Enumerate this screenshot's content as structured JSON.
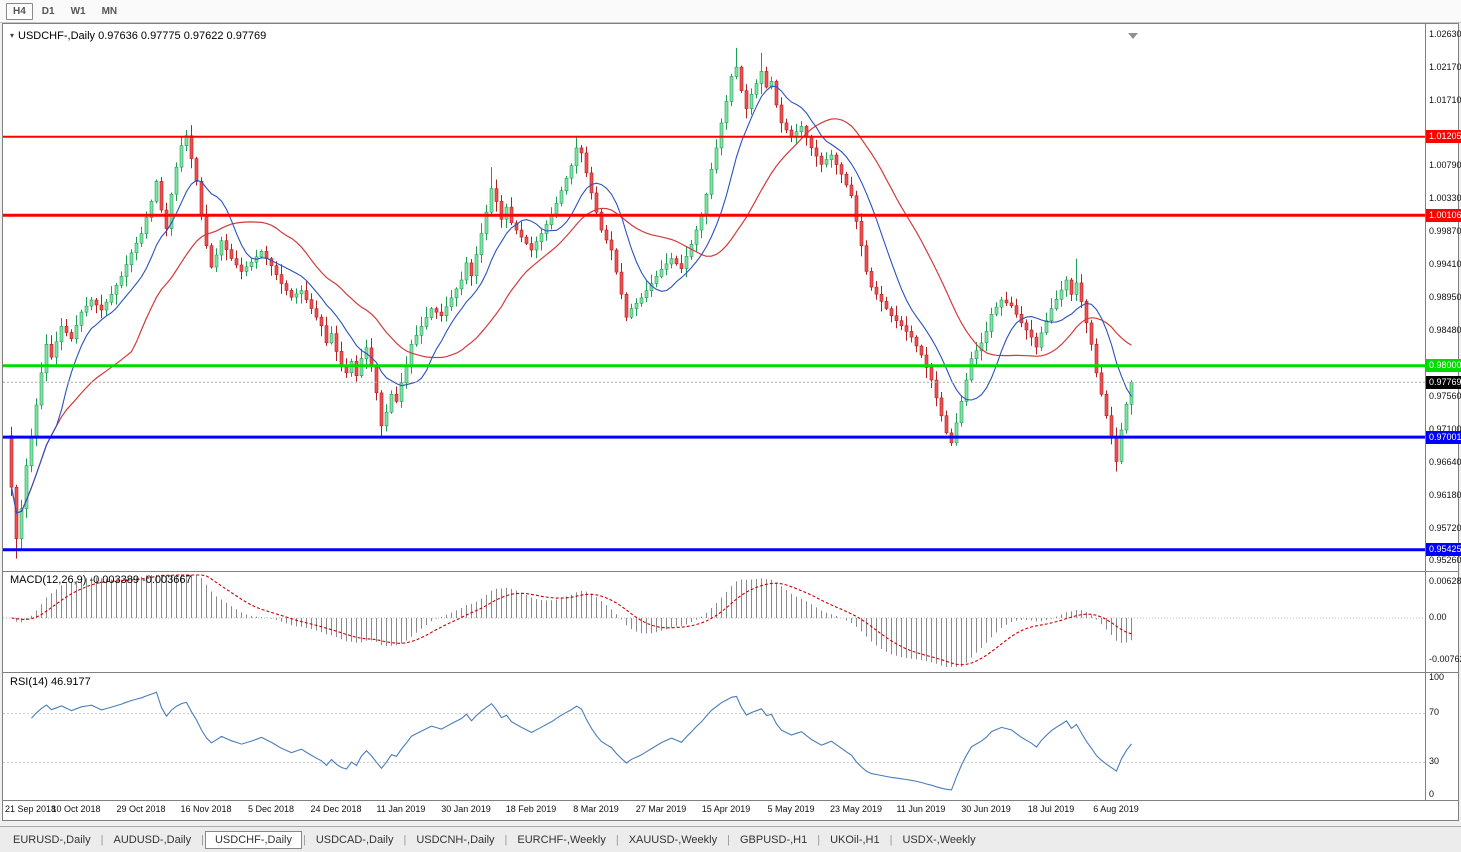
{
  "window": {
    "header": "USDCHF-,Daily 0.97636 0.97775 0.97622 0.97769",
    "collapse_icon": "▾"
  },
  "toolbar": {
    "buttons": [
      {
        "label": "H4",
        "active": true
      },
      {
        "label": "D1",
        "active": false
      },
      {
        "label": "W1",
        "active": false
      },
      {
        "label": "MN",
        "active": false
      }
    ]
  },
  "indicators": {
    "macd": {
      "label": "MACD(12,26,9) -0.003389 -0.003667",
      "axis": [
        "0.006286",
        "0.00",
        "-0.007620"
      ]
    },
    "rsi": {
      "label": "RSI(14) 46.9177",
      "axis": [
        "100",
        "70",
        "30",
        "0"
      ]
    }
  },
  "price_axis": {
    "ticks": [
      {
        "label": "1.02630",
        "value": 1.0263
      },
      {
        "label": "1.02170",
        "value": 1.0217
      },
      {
        "label": "1.01710",
        "value": 1.0171
      },
      {
        "label": "1.00790",
        "value": 1.0079
      },
      {
        "label": "1.00330",
        "value": 1.0033
      },
      {
        "label": "0.99870",
        "value": 0.9987
      },
      {
        "label": "0.99410",
        "value": 0.9941
      },
      {
        "label": "0.98950",
        "value": 0.9895
      },
      {
        "label": "0.98480",
        "value": 0.9848
      },
      {
        "label": "0.97560",
        "value": 0.9756
      },
      {
        "label": "0.97100",
        "value": 0.971
      },
      {
        "label": "0.96640",
        "value": 0.9664
      },
      {
        "label": "0.96180",
        "value": 0.9618
      },
      {
        "label": "0.95720",
        "value": 0.9572
      },
      {
        "label": "0.95260",
        "value": 0.9526
      }
    ]
  },
  "tabs": {
    "items": [
      {
        "label": "EURUSD-,Daily",
        "active": false
      },
      {
        "label": "AUDUSD-,Daily",
        "active": false
      },
      {
        "label": "USDCHF-,Daily",
        "active": true
      },
      {
        "label": "USDCAD-,Daily",
        "active": false
      },
      {
        "label": "USDCNH-,Daily",
        "active": false
      },
      {
        "label": "EURCHF-,Weekly",
        "active": false
      },
      {
        "label": "XAUUSD-,Weekly",
        "active": false
      },
      {
        "label": "GBPUSD-,H1",
        "active": false
      },
      {
        "label": "UKOil-,H1",
        "active": false
      },
      {
        "label": "USDX-,Weekly",
        "active": false
      }
    ]
  },
  "chart_data": {
    "type": "candlestick",
    "symbol": "USDCHF-",
    "timeframe": "Daily",
    "current": {
      "open": 0.97636,
      "high": 0.97775,
      "low": 0.97622,
      "close": 0.97769
    },
    "y_range": [
      0.9526,
      1.0263
    ],
    "y_tick_step": 0.0046,
    "candle_count": 225,
    "first_open": 0.9702,
    "close_anchors": [
      [
        0,
        0.963
      ],
      [
        1,
        0.9558
      ],
      [
        2,
        0.96
      ],
      [
        3,
        0.966
      ],
      [
        4,
        0.97
      ],
      [
        5,
        0.9745
      ],
      [
        6,
        0.979
      ],
      [
        7,
        0.983
      ],
      [
        8,
        0.9812
      ],
      [
        10,
        0.9855
      ],
      [
        12,
        0.9838
      ],
      [
        14,
        0.9875
      ],
      [
        16,
        0.9892
      ],
      [
        18,
        0.9878
      ],
      [
        20,
        0.99
      ],
      [
        22,
        0.9925
      ],
      [
        24,
        0.9958
      ],
      [
        26,
        0.9985
      ],
      [
        28,
        1.003
      ],
      [
        29,
        1.0058
      ],
      [
        30,
        1.0018
      ],
      [
        31,
        0.9992
      ],
      [
        32,
        1.004
      ],
      [
        33,
        1.0078
      ],
      [
        34,
        1.0108
      ],
      [
        35,
        1.0122
      ],
      [
        36,
        1.009
      ],
      [
        37,
        1.0058
      ],
      [
        38,
        1.0012
      ],
      [
        39,
        0.9968
      ],
      [
        40,
        0.9938
      ],
      [
        41,
        0.9955
      ],
      [
        42,
        0.9975
      ],
      [
        44,
        0.995
      ],
      [
        46,
        0.9932
      ],
      [
        48,
        0.9945
      ],
      [
        50,
        0.996
      ],
      [
        52,
        0.994
      ],
      [
        54,
        0.9915
      ],
      [
        56,
        0.9896
      ],
      [
        58,
        0.9905
      ],
      [
        60,
        0.988
      ],
      [
        62,
        0.9856
      ],
      [
        63,
        0.9832
      ],
      [
        64,
        0.9845
      ],
      [
        65,
        0.982
      ],
      [
        66,
        0.98
      ],
      [
        67,
        0.979
      ],
      [
        68,
        0.9806
      ],
      [
        69,
        0.9786
      ],
      [
        70,
        0.981
      ],
      [
        71,
        0.9825
      ],
      [
        72,
        0.98
      ],
      [
        73,
        0.9762
      ],
      [
        74,
        0.9716
      ],
      [
        75,
        0.9735
      ],
      [
        76,
        0.976
      ],
      [
        77,
        0.975
      ],
      [
        78,
        0.9776
      ],
      [
        79,
        0.98
      ],
      [
        80,
        0.983
      ],
      [
        82,
        0.9855
      ],
      [
        84,
        0.988
      ],
      [
        86,
        0.987
      ],
      [
        88,
        0.9895
      ],
      [
        90,
        0.992
      ],
      [
        91,
        0.9944
      ],
      [
        92,
        0.9926
      ],
      [
        94,
        0.9985
      ],
      [
        95,
        1.0015
      ],
      [
        96,
        1.0048
      ],
      [
        97,
        1.003
      ],
      [
        98,
        1.0005
      ],
      [
        99,
        1.0022
      ],
      [
        100,
        1.0
      ],
      [
        102,
        0.998
      ],
      [
        104,
        0.9962
      ],
      [
        106,
        0.9985
      ],
      [
        108,
        1.001
      ],
      [
        110,
        1.0045
      ],
      [
        112,
        1.008
      ],
      [
        113,
        1.0105
      ],
      [
        114,
        1.0098
      ],
      [
        115,
        1.007
      ],
      [
        116,
        1.0042
      ],
      [
        117,
        1.0015
      ],
      [
        118,
        0.999
      ],
      [
        120,
        0.9962
      ],
      [
        122,
        0.99
      ],
      [
        123,
        0.9868
      ],
      [
        124,
        0.988
      ],
      [
        126,
        0.9895
      ],
      [
        128,
        0.9915
      ],
      [
        130,
        0.9935
      ],
      [
        132,
        0.995
      ],
      [
        134,
        0.9936
      ],
      [
        136,
        0.997
      ],
      [
        138,
        1.001
      ],
      [
        139,
        1.004
      ],
      [
        140,
        1.0075
      ],
      [
        141,
        1.0105
      ],
      [
        142,
        1.014
      ],
      [
        143,
        1.017
      ],
      [
        144,
        1.0205
      ],
      [
        145,
        1.0218
      ],
      [
        146,
        1.0185
      ],
      [
        147,
        1.016
      ],
      [
        148,
        1.018
      ],
      [
        149,
        1.0195
      ],
      [
        150,
        1.0212
      ],
      [
        151,
        1.019
      ],
      [
        152,
        1.0198
      ],
      [
        153,
        1.0165
      ],
      [
        154,
        1.014
      ],
      [
        156,
        1.012
      ],
      [
        158,
        1.0135
      ],
      [
        160,
        1.0105
      ],
      [
        162,
        1.0082
      ],
      [
        164,
        1.0095
      ],
      [
        166,
        1.0068
      ],
      [
        168,
        1.0038
      ],
      [
        169,
        1.0002
      ],
      [
        170,
        0.9968
      ],
      [
        171,
        0.9932
      ],
      [
        172,
        0.991
      ],
      [
        174,
        0.989
      ],
      [
        176,
        0.987
      ],
      [
        178,
        0.9856
      ],
      [
        180,
        0.984
      ],
      [
        182,
        0.9815
      ],
      [
        184,
        0.978
      ],
      [
        186,
        0.973
      ],
      [
        187,
        0.9706
      ],
      [
        188,
        0.9692
      ],
      [
        189,
        0.972
      ],
      [
        190,
        0.975
      ],
      [
        191,
        0.978
      ],
      [
        192,
        0.981
      ],
      [
        194,
        0.9832
      ],
      [
        195,
        0.9848
      ],
      [
        196,
        0.9872
      ],
      [
        198,
        0.9892
      ],
      [
        200,
        0.9884
      ],
      [
        202,
        0.986
      ],
      [
        204,
        0.984
      ],
      [
        205,
        0.9826
      ],
      [
        206,
        0.9846
      ],
      [
        208,
        0.988
      ],
      [
        210,
        0.9906
      ],
      [
        211,
        0.992
      ],
      [
        212,
        0.99
      ],
      [
        213,
        0.9916
      ],
      [
        214,
        0.989
      ],
      [
        215,
        0.986
      ],
      [
        216,
        0.983
      ],
      [
        217,
        0.979
      ],
      [
        218,
        0.976
      ],
      [
        219,
        0.973
      ],
      [
        220,
        0.97
      ],
      [
        221,
        0.9666
      ],
      [
        222,
        0.971
      ],
      [
        223,
        0.9746
      ],
      [
        224,
        0.97769
      ]
    ],
    "extra_wicks": [
      {
        "i": 1,
        "low": 0.953
      },
      {
        "i": 35,
        "high": 1.013
      },
      {
        "i": 74,
        "low": 0.97
      },
      {
        "i": 96,
        "high": 1.0078
      },
      {
        "i": 113,
        "high": 1.0122
      },
      {
        "i": 145,
        "high": 1.0245
      },
      {
        "i": 150,
        "high": 1.0238
      },
      {
        "i": 188,
        "low": 0.9688
      },
      {
        "i": 213,
        "high": 0.995
      },
      {
        "i": 221,
        "low": 0.9655
      }
    ],
    "levels": [
      {
        "label": "1.01205",
        "value": 1.01205,
        "color": "#FF0000",
        "thickness": 2
      },
      {
        "label": "1.00106",
        "value": 1.00106,
        "color": "#FF0000",
        "thickness": 3
      },
      {
        "label": "0.98000",
        "value": 0.98,
        "color": "#00DC00",
        "thickness": 3
      },
      {
        "label": "0.97001",
        "value": 0.97001,
        "color": "#0000FF",
        "thickness": 3
      },
      {
        "label": "0.95425",
        "value": 0.95425,
        "color": "#0000FF",
        "thickness": 3
      }
    ],
    "current_price": {
      "label": "0.97769",
      "value": 0.97769,
      "badge_color": "#000000"
    },
    "x_labels": [
      {
        "i": 0,
        "label": "21 Sep 2018"
      },
      {
        "i": 13,
        "label": "10 Oct 2018"
      },
      {
        "i": 26,
        "label": "29 Oct 2018"
      },
      {
        "i": 39,
        "label": "16 Nov 2018"
      },
      {
        "i": 52,
        "label": "5 Dec 2018"
      },
      {
        "i": 65,
        "label": "24 Dec 2018"
      },
      {
        "i": 78,
        "label": "11 Jan 2019"
      },
      {
        "i": 91,
        "label": "30 Jan 2019"
      },
      {
        "i": 104,
        "label": "18 Feb 2019"
      },
      {
        "i": 117,
        "label": "8 Mar 2019"
      },
      {
        "i": 130,
        "label": "27 Mar 2019"
      },
      {
        "i": 143,
        "label": "15 Apr 2019"
      },
      {
        "i": 156,
        "label": "5 May 2019"
      },
      {
        "i": 169,
        "label": "23 May 2019"
      },
      {
        "i": 182,
        "label": "11 Jun 2019"
      },
      {
        "i": 195,
        "label": "30 Jun 2019"
      },
      {
        "i": 208,
        "label": "18 Jul 2019"
      },
      {
        "i": 221,
        "label": "6 Aug 2019"
      }
    ],
    "indicator_panels": [
      {
        "type": "macd",
        "fast": 12,
        "slow": 26,
        "signal": 9,
        "values": [
          -0.003389,
          -0.003667
        ],
        "axis_max": 0.006286,
        "axis_min": -0.00762
      },
      {
        "type": "rsi",
        "period": 14,
        "value": 46.9177,
        "levels": [
          70,
          30
        ],
        "range": [
          0,
          100
        ]
      }
    ],
    "colors": {
      "up_fill": "#7FE3A3",
      "up_border": "#1E9E54",
      "down_fill": "#EF4F4F",
      "down_border": "#B32020",
      "ma_fast": "#2A52BE",
      "ma_slow": "#D23B3B",
      "macd_hist": "#8a8a8a",
      "macd_signal": "#CC0000",
      "rsi": "#4A7EBB",
      "grid": "#c8c8c8",
      "divider": "#808080",
      "current_line": "#a8a8a8"
    }
  }
}
